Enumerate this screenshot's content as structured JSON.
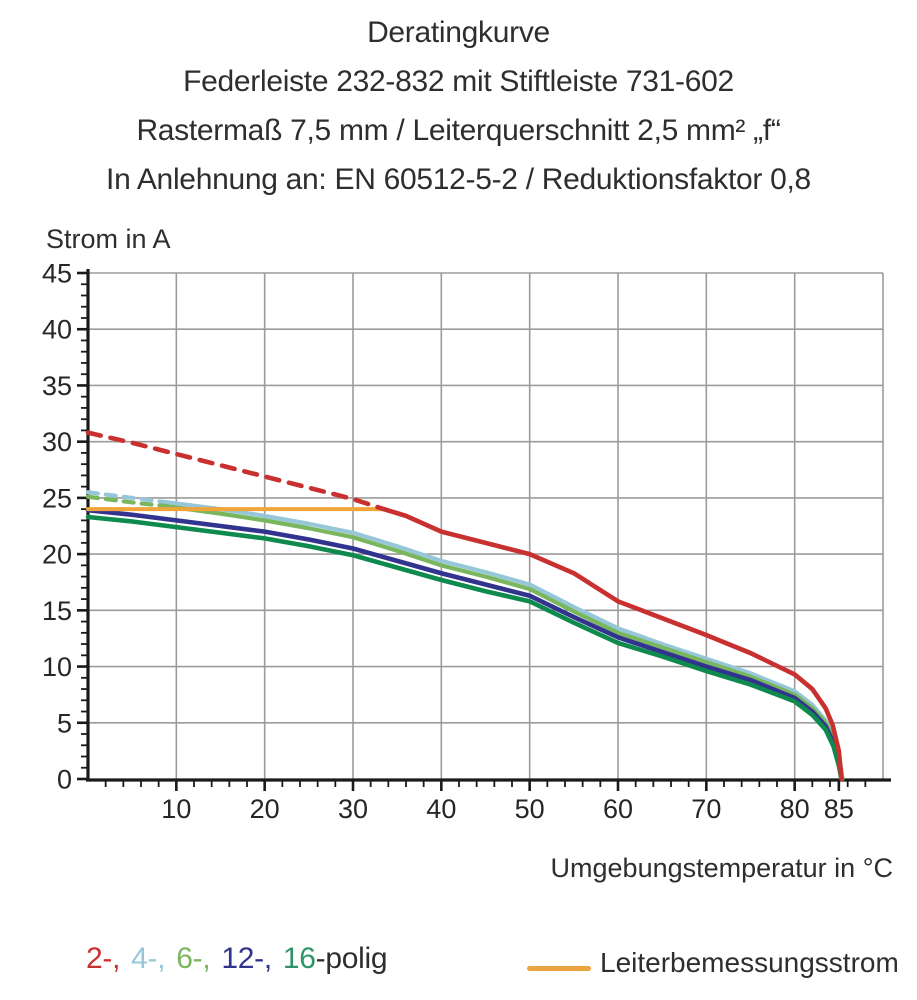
{
  "title": {
    "line1": "Deratingkurve",
    "line2": "Federleiste 232-832 mit Stiftleiste 731-602",
    "line3": "Rastermaß 7,5 mm / Leiterquerschnitt 2,5 mm² „f“",
    "line4": "In Anlehnung an: EN 60512-5-2 / Reduktionsfaktor 0,8"
  },
  "chart_data": {
    "type": "line",
    "title": "Deratingkurve Federleiste 232-832 mit Stiftleiste 731-602",
    "xlabel": "Umgebungstemperatur in °C",
    "ylabel": "Strom in A",
    "xlim": [
      0,
      90
    ],
    "ylim": [
      0,
      45
    ],
    "grid": true,
    "grid_color": "#9b9b9b",
    "axis_color": "#1a1a1a",
    "x_major_ticks": [
      10,
      20,
      30,
      40,
      50,
      60,
      70,
      80,
      85
    ],
    "x_gridlines": [
      10,
      20,
      30,
      40,
      50,
      60,
      70,
      80,
      90
    ],
    "x_minor_step": 2,
    "y_major_ticks": [
      0,
      5,
      10,
      15,
      20,
      25,
      30,
      35,
      40,
      45
    ],
    "y_minor_step": 1,
    "series": [
      {
        "name": "4-polig",
        "color": "#96c7d9",
        "width": 4.2,
        "dash": "10 8",
        "segments": [
          {
            "style": "dashed",
            "points": [
              [
                0,
                25.5
              ],
              [
                3,
                25.2
              ],
              [
                6,
                24.9
              ],
              [
                9,
                24.6
              ]
            ]
          },
          {
            "style": "solid",
            "points": [
              [
                9,
                24.6
              ],
              [
                15,
                24
              ],
              [
                20,
                23.4
              ],
              [
                25,
                22.7
              ],
              [
                30,
                21.9
              ],
              [
                35,
                20.7
              ],
              [
                40,
                19.4
              ],
              [
                45,
                18.4
              ],
              [
                50,
                17.3
              ],
              [
                55,
                15.3
              ],
              [
                60,
                13.4
              ],
              [
                65,
                12
              ],
              [
                70,
                10.7
              ],
              [
                75,
                9.4
              ],
              [
                80,
                7.8
              ],
              [
                82,
                6.6
              ],
              [
                83.5,
                5.2
              ],
              [
                84.5,
                3.6
              ],
              [
                85.1,
                1.8
              ],
              [
                85.4,
                0
              ]
            ]
          }
        ]
      },
      {
        "name": "6-polig",
        "color": "#79b65e",
        "width": 4.2,
        "dash": "10 8",
        "segments": [
          {
            "style": "dashed",
            "points": [
              [
                0,
                25.1
              ],
              [
                3,
                24.8
              ],
              [
                6,
                24.5
              ],
              [
                8.5,
                24.3
              ]
            ]
          },
          {
            "style": "solid",
            "points": [
              [
                8.5,
                24.3
              ],
              [
                15,
                23.6
              ],
              [
                20,
                23
              ],
              [
                25,
                22.3
              ],
              [
                30,
                21.5
              ],
              [
                35,
                20.3
              ],
              [
                40,
                19
              ],
              [
                45,
                18
              ],
              [
                50,
                16.9
              ],
              [
                55,
                14.9
              ],
              [
                60,
                13
              ],
              [
                65,
                11.7
              ],
              [
                70,
                10.4
              ],
              [
                75,
                9.1
              ],
              [
                80,
                7.5
              ],
              [
                82,
                6.3
              ],
              [
                83.5,
                5
              ],
              [
                84.5,
                3.4
              ],
              [
                85.1,
                1.6
              ],
              [
                85.4,
                0
              ]
            ]
          }
        ]
      },
      {
        "name": "12-polig",
        "color": "#32338e",
        "width": 4.6,
        "dash": "",
        "segments": [
          {
            "style": "solid",
            "points": [
              [
                0,
                23.9
              ],
              [
                5,
                23.5
              ],
              [
                10,
                23
              ],
              [
                15,
                22.5
              ],
              [
                20,
                22
              ],
              [
                25,
                21.3
              ],
              [
                30,
                20.5
              ],
              [
                35,
                19.4
              ],
              [
                40,
                18.3
              ],
              [
                45,
                17.3
              ],
              [
                50,
                16.3
              ],
              [
                55,
                14.4
              ],
              [
                60,
                12.6
              ],
              [
                65,
                11.3
              ],
              [
                70,
                10
              ],
              [
                75,
                8.8
              ],
              [
                80,
                7.2
              ],
              [
                82,
                6
              ],
              [
                83.5,
                4.7
              ],
              [
                84.4,
                3.2
              ],
              [
                85,
                1.4
              ],
              [
                85.3,
                0
              ]
            ]
          }
        ]
      },
      {
        "name": "16-polig",
        "color": "#0f8a4f",
        "width": 4.6,
        "dash": "",
        "segments": [
          {
            "style": "solid",
            "points": [
              [
                0,
                23.3
              ],
              [
                5,
                22.9
              ],
              [
                10,
                22.4
              ],
              [
                15,
                21.9
              ],
              [
                20,
                21.4
              ],
              [
                25,
                20.7
              ],
              [
                30,
                19.9
              ],
              [
                35,
                18.8
              ],
              [
                40,
                17.7
              ],
              [
                45,
                16.7
              ],
              [
                50,
                15.8
              ],
              [
                55,
                13.9
              ],
              [
                60,
                12.1
              ],
              [
                65,
                10.9
              ],
              [
                70,
                9.6
              ],
              [
                75,
                8.4
              ],
              [
                80,
                6.9
              ],
              [
                82,
                5.7
              ],
              [
                83.5,
                4.4
              ],
              [
                84.4,
                2.9
              ],
              [
                85,
                1.2
              ],
              [
                85.3,
                0
              ]
            ]
          }
        ]
      },
      {
        "name": "Leiterbemessungsstrom",
        "color": "#f0a43a",
        "width": 4,
        "dash": "",
        "segments": [
          {
            "style": "solid",
            "points": [
              [
                0,
                24
              ],
              [
                33.5,
                24
              ]
            ]
          }
        ]
      },
      {
        "name": "2-polig",
        "color": "#c8312f",
        "width": 4.6,
        "dash": "13 10",
        "segments": [
          {
            "style": "dashed",
            "points": [
              [
                0,
                30.8
              ],
              [
                5,
                29.9
              ],
              [
                10,
                28.9
              ],
              [
                15,
                27.9
              ],
              [
                20,
                26.9
              ],
              [
                25,
                25.9
              ],
              [
                30,
                24.9
              ],
              [
                33.5,
                24
              ]
            ]
          },
          {
            "style": "solid",
            "points": [
              [
                33.5,
                24
              ],
              [
                36,
                23.4
              ],
              [
                40,
                22
              ],
              [
                45,
                21
              ],
              [
                50,
                20
              ],
              [
                55,
                18.3
              ],
              [
                60,
                15.8
              ],
              [
                65,
                14.3
              ],
              [
                70,
                12.8
              ],
              [
                75,
                11.2
              ],
              [
                80,
                9.3
              ],
              [
                82,
                8
              ],
              [
                83.5,
                6.3
              ],
              [
                84.3,
                4.8
              ],
              [
                85,
                2.5
              ],
              [
                85.3,
                0
              ]
            ]
          }
        ]
      }
    ]
  },
  "legend": {
    "items": [
      {
        "label": "2-,",
        "color": "#c8312f"
      },
      {
        "label": "4-,",
        "color": "#96c7d9"
      },
      {
        "label": "6-,",
        "color": "#79b65e"
      },
      {
        "label": "12-,",
        "color": "#32338e"
      },
      {
        "label": "16",
        "color": "#2e9366"
      }
    ],
    "suffix": "-polig",
    "line_item": {
      "label": "Leiterbemessungsstrom",
      "color": "#eba43f"
    }
  }
}
